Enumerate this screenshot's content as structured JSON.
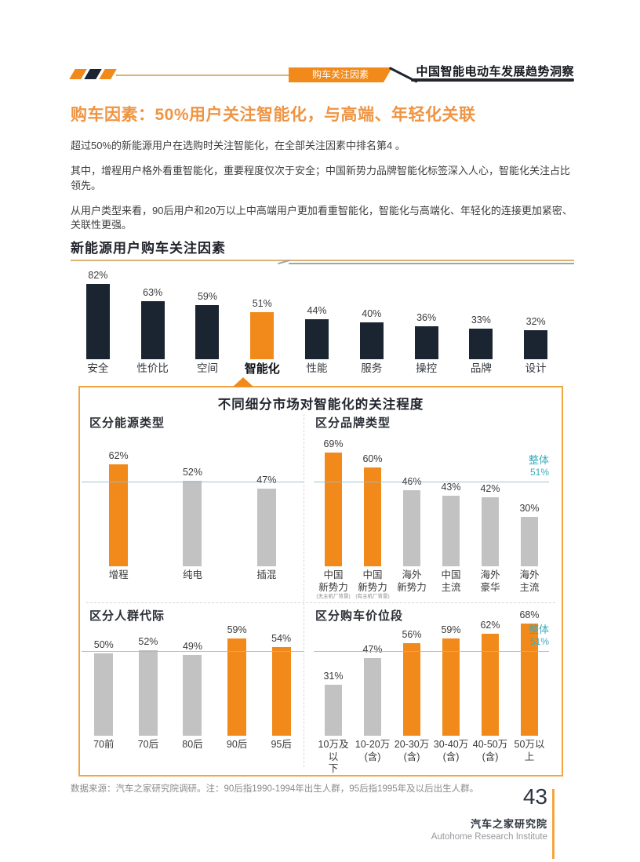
{
  "header": {
    "tag": "购车关注因素",
    "report_title": "中国智能电动车发展趋势洞察"
  },
  "headline": "购车因素：50%用户关注智能化，与高端、年轻化关联",
  "paragraphs": [
    "超过50%的新能源用户在选购时关注智能化，在全部关注因素中排名第4 。",
    "其中，增程用户格外看重智能化，重要程度仅次于安全；中国新势力品牌智能化标签深入人心，智能化关注占比领先。",
    "从用户类型来看，90后用户和20万以上中高端用户更加看重智能化，智能化与高端化、年轻化的连接更加紧密、关联性更强。"
  ],
  "panel_title": "不同细分市场对智能化的关注程度",
  "overall_label": "整体",
  "overall_value": "51%",
  "footer": {
    "note": "数据来源：汽车之家研究院调研。注：90后指1990-1994年出生人群，95后指1995年及以后出生人群。",
    "page_number": "43",
    "org_cn": "汽车之家研究院",
    "org_en": "Autohome Research Institute"
  },
  "colors": {
    "accent_orange": "#F18A1A",
    "headline_orange": "#EF9443",
    "bar_dark": "#1B2531",
    "bar_gray": "#C2C2C2",
    "teal": "#3BAABE",
    "panel_border": "#F2A640",
    "tan": "#D8B278",
    "ink": "#23262B"
  },
  "chart_data": [
    {
      "id": "factors",
      "type": "bar",
      "title": "新能源用户购车关注因素",
      "categories": [
        "安全",
        "性价比",
        "空间",
        "智能化",
        "性能",
        "服务",
        "操控",
        "品牌",
        "设计"
      ],
      "values": [
        82,
        63,
        59,
        51,
        44,
        40,
        36,
        33,
        32
      ],
      "unit": "%",
      "highlight": [
        3
      ],
      "ylim": [
        0,
        100
      ],
      "grid": false,
      "legend": "none"
    },
    {
      "id": "energy-type",
      "type": "bar",
      "title": "区分能源类型",
      "categories": [
        "增程",
        "纯电",
        "插混"
      ],
      "values": [
        62,
        52,
        47
      ],
      "unit": "%",
      "highlight": [
        0
      ],
      "reference_line": {
        "label": "整体",
        "value": 51
      },
      "ylim": [
        0,
        80
      ],
      "grid": false
    },
    {
      "id": "brand-type",
      "type": "bar",
      "title": "区分品牌类型",
      "categories": [
        "中国\n新势力",
        "中国\n新势力",
        "海外\n新势力",
        "中国\n主流",
        "海外\n豪华",
        "海外\n主流"
      ],
      "sublabels": [
        "(无主机厂背景)",
        "(有主机厂背景)",
        "",
        "",
        "",
        ""
      ],
      "values": [
        69,
        60,
        46,
        43,
        42,
        30
      ],
      "unit": "%",
      "highlight": [
        0,
        1
      ],
      "reference_line": {
        "label": "整体",
        "value": 51
      },
      "ylim": [
        0,
        80
      ],
      "grid": false
    },
    {
      "id": "generation",
      "type": "bar",
      "title": "区分人群代际",
      "categories": [
        "70前",
        "70后",
        "80后",
        "90后",
        "95后"
      ],
      "values": [
        50,
        52,
        49,
        59,
        54
      ],
      "unit": "%",
      "highlight": [
        3,
        4
      ],
      "reference_line": {
        "label": "整体",
        "value": 51
      },
      "ylim": [
        0,
        80
      ],
      "grid": false
    },
    {
      "id": "price-range",
      "type": "bar",
      "title": "区分购车价位段",
      "categories": [
        "10万及以\n下",
        "10-20万\n(含)",
        "20-30万\n(含)",
        "30-40万\n(含)",
        "40-50万\n(含)",
        "50万以上"
      ],
      "values": [
        31,
        47,
        56,
        59,
        62,
        68
      ],
      "unit": "%",
      "highlight": [
        2,
        3,
        4,
        5
      ],
      "reference_line": {
        "label": "整体",
        "value": 51
      },
      "ylim": [
        0,
        80
      ],
      "grid": false
    }
  ]
}
